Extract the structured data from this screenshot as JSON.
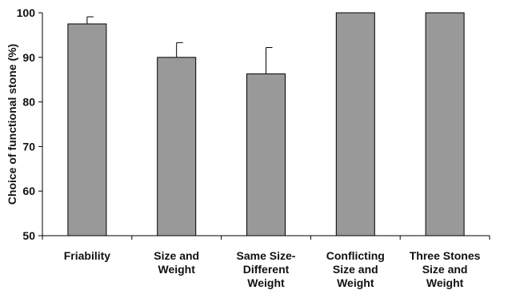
{
  "chart_data": {
    "type": "bar",
    "title": "",
    "xlabel": "",
    "ylabel": "Choice of functional stone (%)",
    "ylim": [
      50,
      100
    ],
    "yticks": [
      50,
      60,
      70,
      80,
      90,
      100
    ],
    "grid": false,
    "categories": [
      [
        "Friability"
      ],
      [
        "Size and",
        "Weight"
      ],
      [
        "Same Size-",
        "Different",
        "Weight"
      ],
      [
        "Conflicting",
        "Size and",
        "Weight"
      ],
      [
        "Three Stones",
        "Size and",
        "Weight"
      ]
    ],
    "values": [
      97.5,
      90.0,
      86.3,
      100.0,
      100.0
    ],
    "error_upper": [
      1.6,
      3.3,
      5.9,
      0,
      0
    ],
    "bar_color": "#999999",
    "bar_edge_color": "#000000"
  }
}
